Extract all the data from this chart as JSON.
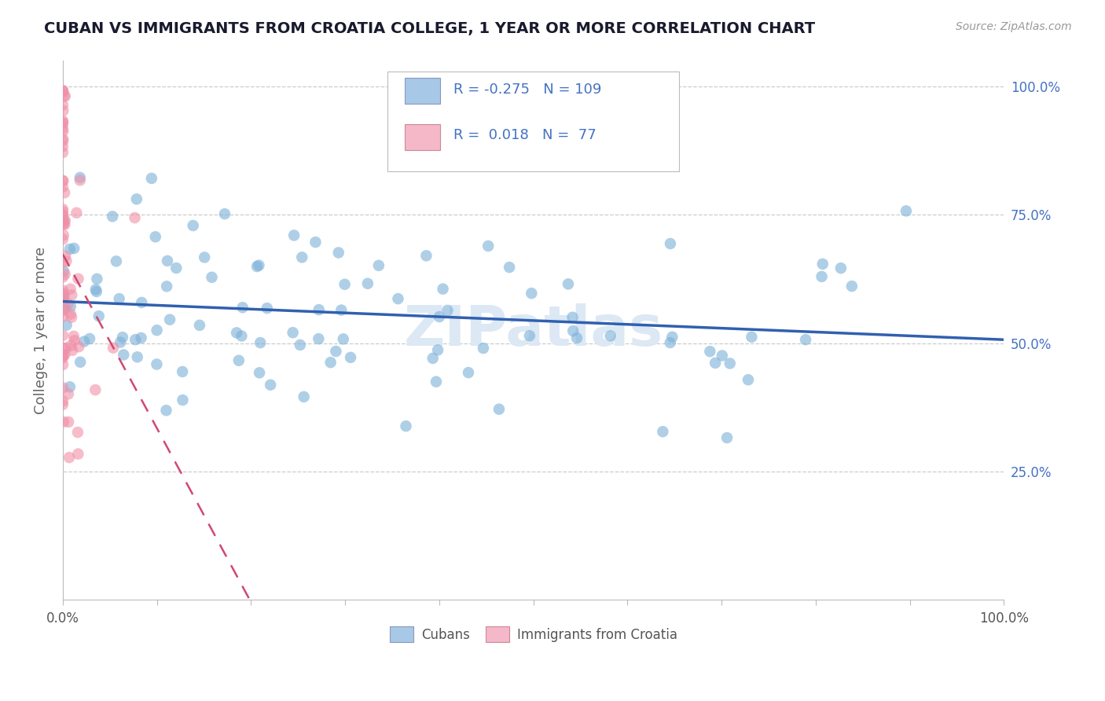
{
  "title": "CUBAN VS IMMIGRANTS FROM CROATIA COLLEGE, 1 YEAR OR MORE CORRELATION CHART",
  "source_text": "Source: ZipAtlas.com",
  "ylabel": "College, 1 year or more",
  "legend_label1": "Cubans",
  "legend_label2": "Immigrants from Croatia",
  "legend_color1": "#a8c8e8",
  "legend_color2": "#f4b8c8",
  "R1": -0.275,
  "N1": 109,
  "R2": 0.018,
  "N2": 77,
  "scatter_color1": "#7ab0d8",
  "scatter_color2": "#f090a8",
  "line_color1": "#3060b0",
  "line_color2": "#d04870",
  "background_color": "#ffffff",
  "grid_color": "#cccccc",
  "title_color": "#1a1a2e",
  "text_color": "#4472c4",
  "xlim": [
    0.0,
    1.0
  ],
  "ylim": [
    0.0,
    1.05
  ],
  "watermark": "ZIPatlas",
  "watermark_color": "#dce8f4"
}
